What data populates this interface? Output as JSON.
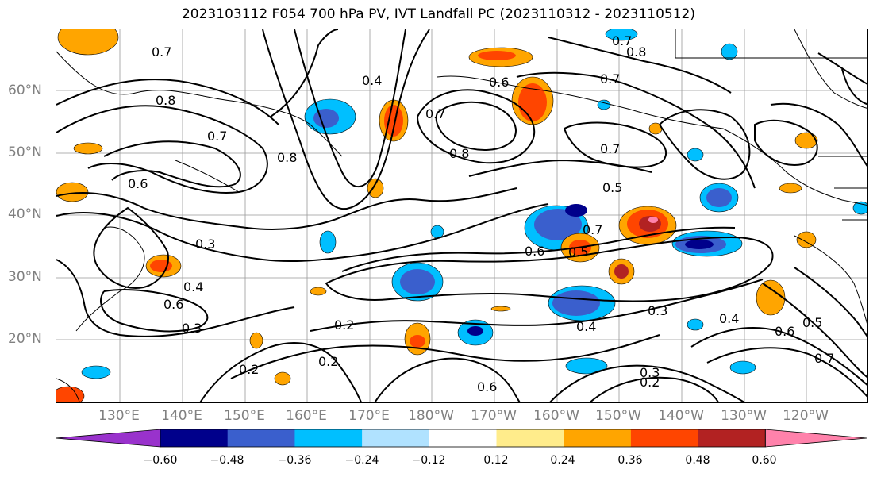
{
  "title": "2023103112 F054 700 hPa PV, IVT Landfall PC (2023110312 - 2023110512)",
  "map": {
    "lat_labels": [
      "60°N",
      "50°N",
      "40°N",
      "30°N",
      "20°N"
    ],
    "lon_labels": [
      "130°E",
      "140°E",
      "150°E",
      "160°E",
      "170°E",
      "180°W",
      "170°W",
      "160°W",
      "150°W",
      "140°W",
      "130°W",
      "120°W"
    ],
    "contour_labels": [
      "0.7",
      "0.8",
      "0.4",
      "0.8",
      "0.7",
      "0.8",
      "0.7",
      "0.6",
      "0.7",
      "0.8",
      "0.6",
      "0.7",
      "0.7",
      "0.5",
      "0.3",
      "0.2",
      "0.4",
      "0.6",
      "0.5",
      "0.6",
      "0.7",
      "0.4",
      "0.3",
      "0.2",
      "0.2",
      "0.3",
      "0.6",
      "0.2",
      "0.3",
      "0.4",
      "0.5",
      "0.6",
      "0.7"
    ]
  },
  "colorbar": {
    "colors": [
      "#9932cc",
      "#00008b",
      "#3a5fcd",
      "#00bfff",
      "#b0e2ff",
      "#ffffff",
      "#ffec8b",
      "#ffa500",
      "#ff4500",
      "#b22222",
      "#ff82ab"
    ],
    "ticks": [
      "−0.60",
      "−0.48",
      "−0.36",
      "−0.24",
      "−0.12",
      "0.12",
      "0.24",
      "0.36",
      "0.48",
      "0.60"
    ]
  }
}
